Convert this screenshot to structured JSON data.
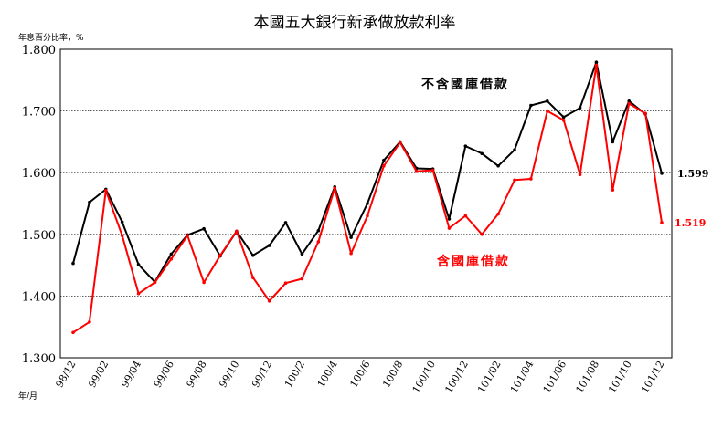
{
  "chart_data": {
    "type": "line",
    "title": "本國五大銀行新承做放款利率",
    "ylabel": "年息百分比率，%",
    "xlabel": "年/月",
    "ylim": [
      1.3,
      1.8
    ],
    "yticks": [
      "1.300",
      "1.400",
      "1.500",
      "1.600",
      "1.700",
      "1.800"
    ],
    "grid": true,
    "categories": [
      "98/12",
      "99/01",
      "99/02",
      "99/03",
      "99/04",
      "99/05",
      "99/06",
      "99/07",
      "99/08",
      "99/09",
      "99/10",
      "99/11",
      "99/12",
      "100/01",
      "100/2",
      "100/3",
      "100/4",
      "100/5",
      "100/6",
      "100/7",
      "100/8",
      "100/9",
      "100/10",
      "100/11",
      "100/12",
      "101/01",
      "101/02",
      "101/03",
      "101/04",
      "101/05",
      "101/06",
      "101/07",
      "101/08",
      "101/09",
      "101/10",
      "101/11",
      "101/12"
    ],
    "xtick_labels": [
      "98/12",
      "99/02",
      "99/04",
      "99/06",
      "99/08",
      "99/10",
      "99/12",
      "100/2",
      "100/4",
      "100/6",
      "100/8",
      "100/10",
      "100/12",
      "101/02",
      "101/04",
      "101/06",
      "101/08",
      "101/10",
      "101/12"
    ],
    "series": [
      {
        "name": "不含國庫借款",
        "color": "#000000",
        "end_label": "1.599",
        "values": [
          1.453,
          1.552,
          1.573,
          1.52,
          1.451,
          1.423,
          1.468,
          1.499,
          1.509,
          1.465,
          1.505,
          1.466,
          1.482,
          1.519,
          1.468,
          1.506,
          1.577,
          1.495,
          1.55,
          1.62,
          1.65,
          1.607,
          1.606,
          1.525,
          1.643,
          1.631,
          1.611,
          1.637,
          1.709,
          1.716,
          1.69,
          1.705,
          1.779,
          1.65,
          1.716,
          1.695,
          1.599
        ]
      },
      {
        "name": "含國庫借款",
        "color": "#ff0000",
        "end_label": "1.519",
        "values": [
          1.341,
          1.358,
          1.571,
          1.498,
          1.404,
          1.422,
          1.46,
          1.498,
          1.422,
          1.466,
          1.505,
          1.43,
          1.392,
          1.421,
          1.428,
          1.488,
          1.575,
          1.469,
          1.53,
          1.611,
          1.649,
          1.602,
          1.604,
          1.51,
          1.53,
          1.5,
          1.533,
          1.588,
          1.59,
          1.7,
          1.685,
          1.597,
          1.774,
          1.572,
          1.712,
          1.696,
          1.519
        ]
      }
    ]
  }
}
